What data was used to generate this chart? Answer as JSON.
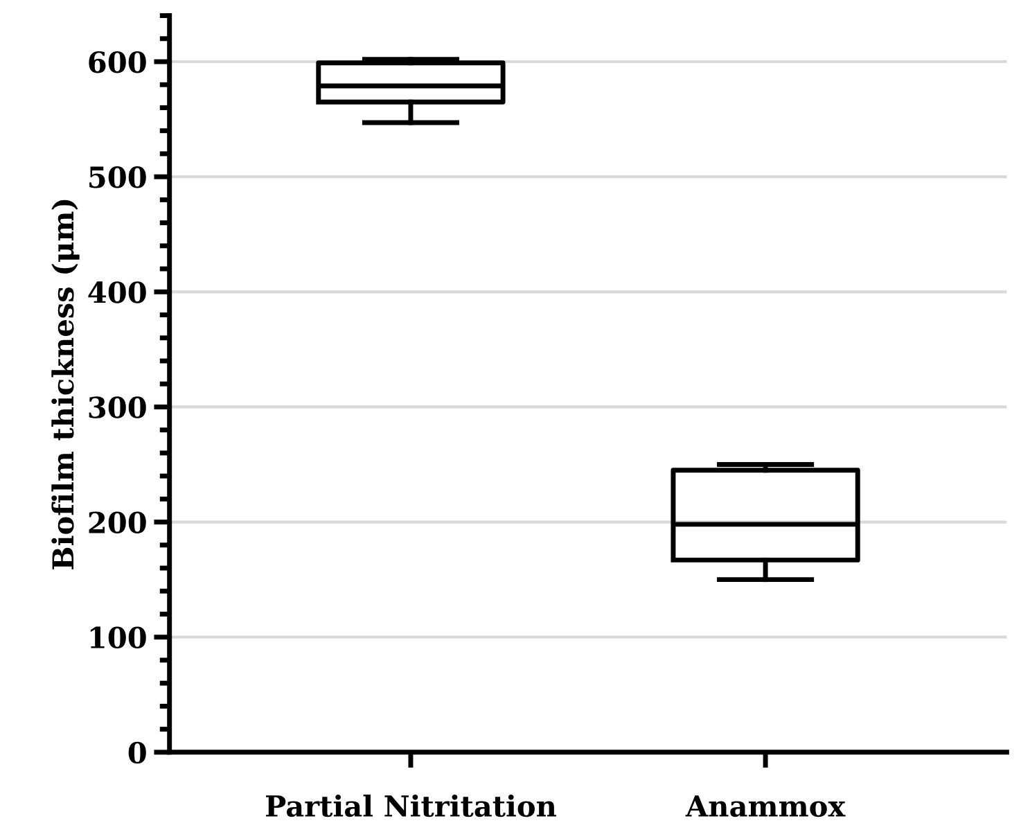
{
  "chart_data": {
    "type": "box",
    "ylabel": "Biofilm thickness (μm)",
    "categories": [
      "Partial Nitritation",
      "Anammox"
    ],
    "boxes": [
      {
        "low": 547,
        "q1": 565,
        "median": 579,
        "q3": 599,
        "high": 602
      },
      {
        "low": 150,
        "q1": 167,
        "median": 198,
        "q3": 245,
        "high": 250
      }
    ],
    "color": "#000000",
    "ylim": [
      0,
      640
    ],
    "yticks": [
      0,
      {
        "value": 20,
        "label": null
      },
      {
        "value": 40,
        "label": null
      },
      {
        "value": 60,
        "label": null
      },
      {
        "value": 80,
        "label": null
      },
      100,
      {
        "value": 120,
        "label": null
      },
      {
        "value": 140,
        "label": null
      },
      {
        "value": 160,
        "label": null
      },
      {
        "value": 180,
        "label": null
      },
      200,
      {
        "value": 220,
        "label": null
      },
      {
        "value": 240,
        "label": null
      },
      {
        "value": 260,
        "label": null
      },
      {
        "value": 280,
        "label": null
      },
      300,
      {
        "value": 320,
        "label": null
      },
      {
        "value": 340,
        "label": null
      },
      {
        "value": 360,
        "label": null
      },
      {
        "value": 380,
        "label": null
      },
      400,
      {
        "value": 420,
        "label": null
      },
      {
        "value": 440,
        "label": null
      },
      {
        "value": 460,
        "label": null
      },
      {
        "value": 480,
        "label": null
      },
      500,
      {
        "value": 520,
        "label": null
      },
      {
        "value": 540,
        "label": null
      },
      {
        "value": 560,
        "label": null
      },
      {
        "value": 580,
        "label": null
      },
      600,
      {
        "value": 620,
        "label": null
      },
      {
        "value": 640,
        "label": null
      }
    ],
    "grid": "y"
  }
}
